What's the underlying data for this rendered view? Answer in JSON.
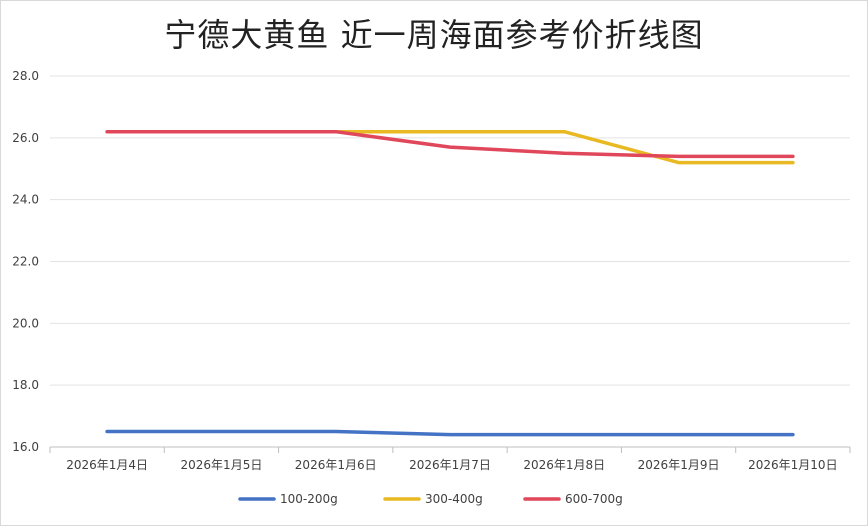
{
  "chart_data": {
    "type": "line",
    "title": "宁德大黄鱼 近一周海面参考价折线图",
    "xlabel": "",
    "ylabel": "",
    "categories": [
      "2026年1月4日",
      "2026年1月5日",
      "2026年1月6日",
      "2026年1月7日",
      "2026年1月8日",
      "2026年1月9日",
      "2026年1月10日"
    ],
    "ylim": [
      16,
      28
    ],
    "yticks": [
      "16.0",
      "18.0",
      "20.0",
      "22.0",
      "24.0",
      "26.0",
      "28.0"
    ],
    "grid": true,
    "legend_position": "bottom",
    "series": [
      {
        "name": "100-200g",
        "color": "#4472c4",
        "values": [
          16.5,
          16.5,
          16.5,
          16.4,
          16.4,
          16.4,
          16.4
        ]
      },
      {
        "name": "300-400g",
        "color": "#e8b923",
        "values": [
          26.2,
          26.2,
          26.2,
          26.2,
          26.2,
          25.2,
          25.2
        ]
      },
      {
        "name": "600-700g",
        "color": "#e0475a",
        "values": [
          26.2,
          26.2,
          26.2,
          25.7,
          25.5,
          25.4,
          25.4
        ]
      }
    ]
  }
}
